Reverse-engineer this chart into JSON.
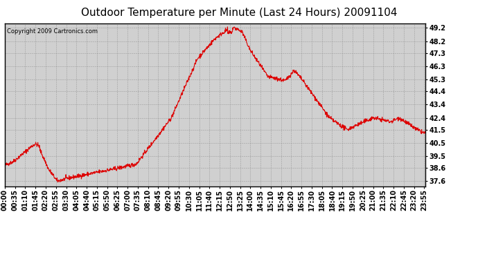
{
  "title": "Outdoor Temperature per Minute (Last 24 Hours) 20091104",
  "copyright": "Copyright 2009 Cartronics.com",
  "line_color": "#dd0000",
  "background_color": "#ffffff",
  "plot_bg_color": "#d0d0d0",
  "grid_color": "#888888",
  "yticks": [
    37.6,
    38.6,
    39.5,
    40.5,
    41.5,
    42.4,
    43.4,
    44.4,
    45.3,
    46.3,
    47.3,
    48.2,
    49.2
  ],
  "ylim": [
    37.2,
    49.55
  ],
  "xtick_labels": [
    "00:00",
    "00:35",
    "01:10",
    "01:45",
    "02:20",
    "02:55",
    "03:30",
    "04:05",
    "04:40",
    "05:15",
    "05:50",
    "06:25",
    "07:00",
    "07:35",
    "08:10",
    "08:45",
    "09:20",
    "09:55",
    "10:30",
    "11:05",
    "11:40",
    "12:15",
    "12:50",
    "13:25",
    "14:00",
    "14:35",
    "15:10",
    "15:45",
    "16:20",
    "16:55",
    "17:30",
    "18:05",
    "18:40",
    "19:15",
    "19:50",
    "20:25",
    "21:00",
    "21:35",
    "22:10",
    "22:45",
    "23:20",
    "23:55"
  ],
  "title_fontsize": 11,
  "tick_fontsize": 7,
  "copyright_fontsize": 6
}
